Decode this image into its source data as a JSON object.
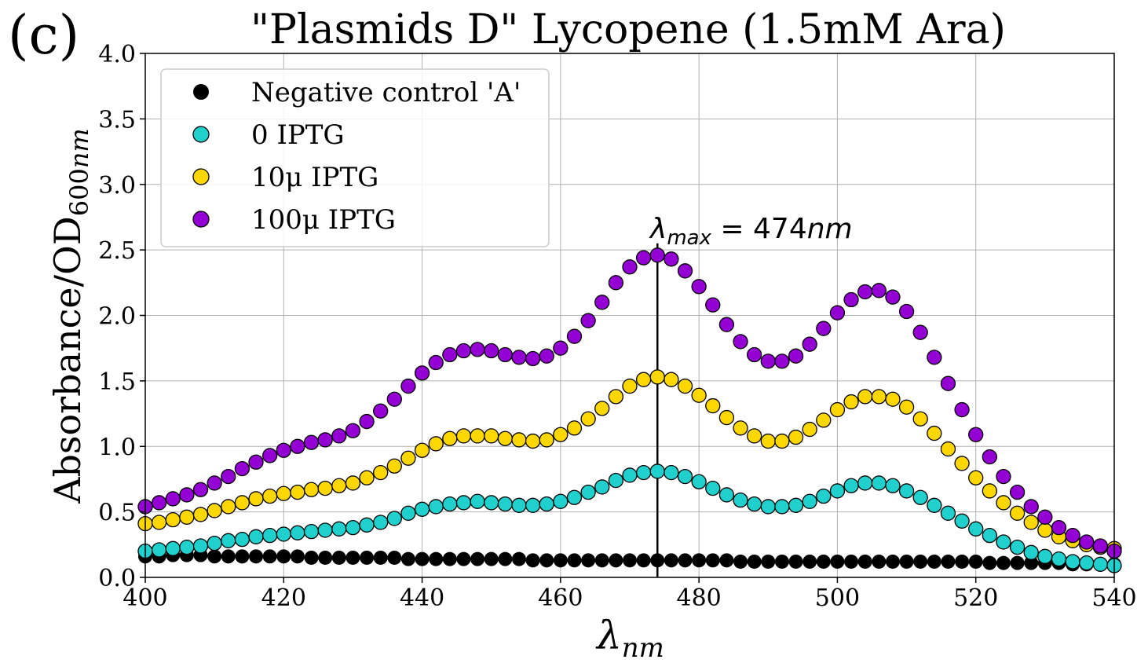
{
  "panel_label": "(c)",
  "title": "\"Plasmids D\"  Lycopene (1.5mM Ara)",
  "chart_data": {
    "type": "scatter",
    "title": "\"Plasmids D\"  Lycopene (1.5mM Ara)",
    "xlabel": "λnm",
    "ylabel": "Absorbance/OD600nm",
    "xlim": [
      400,
      540
    ],
    "ylim": [
      0,
      4.0
    ],
    "xticks": [
      "400",
      "420",
      "440",
      "460",
      "480",
      "500",
      "520",
      "540"
    ],
    "yticks": [
      "0.0",
      "0.5",
      "1.0",
      "1.5",
      "2.0",
      "2.5",
      "3.0",
      "3.5",
      "4.0"
    ],
    "grid": true,
    "legend_position": "top-left",
    "annotation": {
      "text": "λmax = 474nm",
      "x": 474
    },
    "x": [
      400,
      402,
      404,
      406,
      408,
      410,
      412,
      414,
      416,
      418,
      420,
      422,
      424,
      426,
      428,
      430,
      432,
      434,
      436,
      438,
      440,
      442,
      444,
      446,
      448,
      450,
      452,
      454,
      456,
      458,
      460,
      462,
      464,
      466,
      468,
      470,
      472,
      474,
      476,
      478,
      480,
      482,
      484,
      486,
      488,
      490,
      492,
      494,
      496,
      498,
      500,
      502,
      504,
      506,
      508,
      510,
      512,
      514,
      516,
      518,
      520,
      522,
      524,
      526,
      528,
      530,
      532,
      534,
      536,
      538,
      540
    ],
    "series": [
      {
        "name": "Negative control 'A'",
        "color": "#000000",
        "values": [
          0.16,
          0.16,
          0.17,
          0.17,
          0.17,
          0.16,
          0.16,
          0.16,
          0.16,
          0.16,
          0.16,
          0.16,
          0.15,
          0.15,
          0.15,
          0.15,
          0.15,
          0.15,
          0.15,
          0.14,
          0.14,
          0.14,
          0.14,
          0.14,
          0.14,
          0.14,
          0.14,
          0.14,
          0.13,
          0.13,
          0.13,
          0.13,
          0.13,
          0.13,
          0.13,
          0.13,
          0.13,
          0.13,
          0.13,
          0.13,
          0.13,
          0.13,
          0.13,
          0.12,
          0.12,
          0.12,
          0.12,
          0.12,
          0.12,
          0.12,
          0.12,
          0.12,
          0.12,
          0.12,
          0.12,
          0.12,
          0.12,
          0.12,
          0.12,
          0.12,
          0.12,
          0.11,
          0.11,
          0.11,
          0.11,
          0.11,
          0.11,
          0.1,
          0.1,
          0.1,
          0.1
        ]
      },
      {
        "name": "0 IPTG",
        "color": "#1fd0cc",
        "values": [
          0.2,
          0.21,
          0.22,
          0.23,
          0.24,
          0.26,
          0.28,
          0.29,
          0.31,
          0.32,
          0.33,
          0.34,
          0.35,
          0.36,
          0.37,
          0.38,
          0.4,
          0.42,
          0.45,
          0.49,
          0.52,
          0.54,
          0.56,
          0.57,
          0.58,
          0.57,
          0.56,
          0.55,
          0.55,
          0.56,
          0.58,
          0.61,
          0.65,
          0.69,
          0.74,
          0.78,
          0.8,
          0.81,
          0.8,
          0.77,
          0.73,
          0.68,
          0.63,
          0.59,
          0.56,
          0.54,
          0.54,
          0.55,
          0.58,
          0.62,
          0.66,
          0.7,
          0.72,
          0.72,
          0.7,
          0.66,
          0.61,
          0.55,
          0.49,
          0.43,
          0.37,
          0.32,
          0.27,
          0.23,
          0.19,
          0.16,
          0.14,
          0.12,
          0.11,
          0.1,
          0.09
        ]
      },
      {
        "name": "10μ IPTG",
        "color": "#ffd700",
        "values": [
          0.41,
          0.42,
          0.44,
          0.46,
          0.48,
          0.51,
          0.54,
          0.57,
          0.6,
          0.62,
          0.64,
          0.65,
          0.67,
          0.68,
          0.7,
          0.72,
          0.76,
          0.8,
          0.85,
          0.91,
          0.97,
          1.02,
          1.06,
          1.08,
          1.08,
          1.08,
          1.06,
          1.05,
          1.04,
          1.05,
          1.09,
          1.14,
          1.21,
          1.29,
          1.38,
          1.46,
          1.51,
          1.53,
          1.51,
          1.46,
          1.39,
          1.31,
          1.22,
          1.14,
          1.08,
          1.04,
          1.04,
          1.07,
          1.13,
          1.2,
          1.28,
          1.34,
          1.38,
          1.38,
          1.36,
          1.3,
          1.21,
          1.1,
          0.98,
          0.87,
          0.76,
          0.66,
          0.57,
          0.49,
          0.42,
          0.36,
          0.31,
          0.28,
          0.25,
          0.23,
          0.22
        ]
      },
      {
        "name": "100μ IPTG",
        "color": "#9400d3",
        "values": [
          0.54,
          0.57,
          0.6,
          0.63,
          0.67,
          0.72,
          0.77,
          0.83,
          0.88,
          0.93,
          0.97,
          1.0,
          1.03,
          1.05,
          1.08,
          1.12,
          1.19,
          1.27,
          1.36,
          1.46,
          1.56,
          1.64,
          1.7,
          1.73,
          1.74,
          1.73,
          1.7,
          1.68,
          1.67,
          1.69,
          1.75,
          1.84,
          1.96,
          2.1,
          2.25,
          2.37,
          2.44,
          2.46,
          2.43,
          2.34,
          2.22,
          2.08,
          1.93,
          1.8,
          1.7,
          1.65,
          1.65,
          1.69,
          1.78,
          1.9,
          2.02,
          2.12,
          2.18,
          2.19,
          2.14,
          2.03,
          1.87,
          1.68,
          1.48,
          1.28,
          1.09,
          0.92,
          0.77,
          0.65,
          0.54,
          0.46,
          0.38,
          0.32,
          0.27,
          0.24,
          0.2
        ]
      }
    ]
  }
}
